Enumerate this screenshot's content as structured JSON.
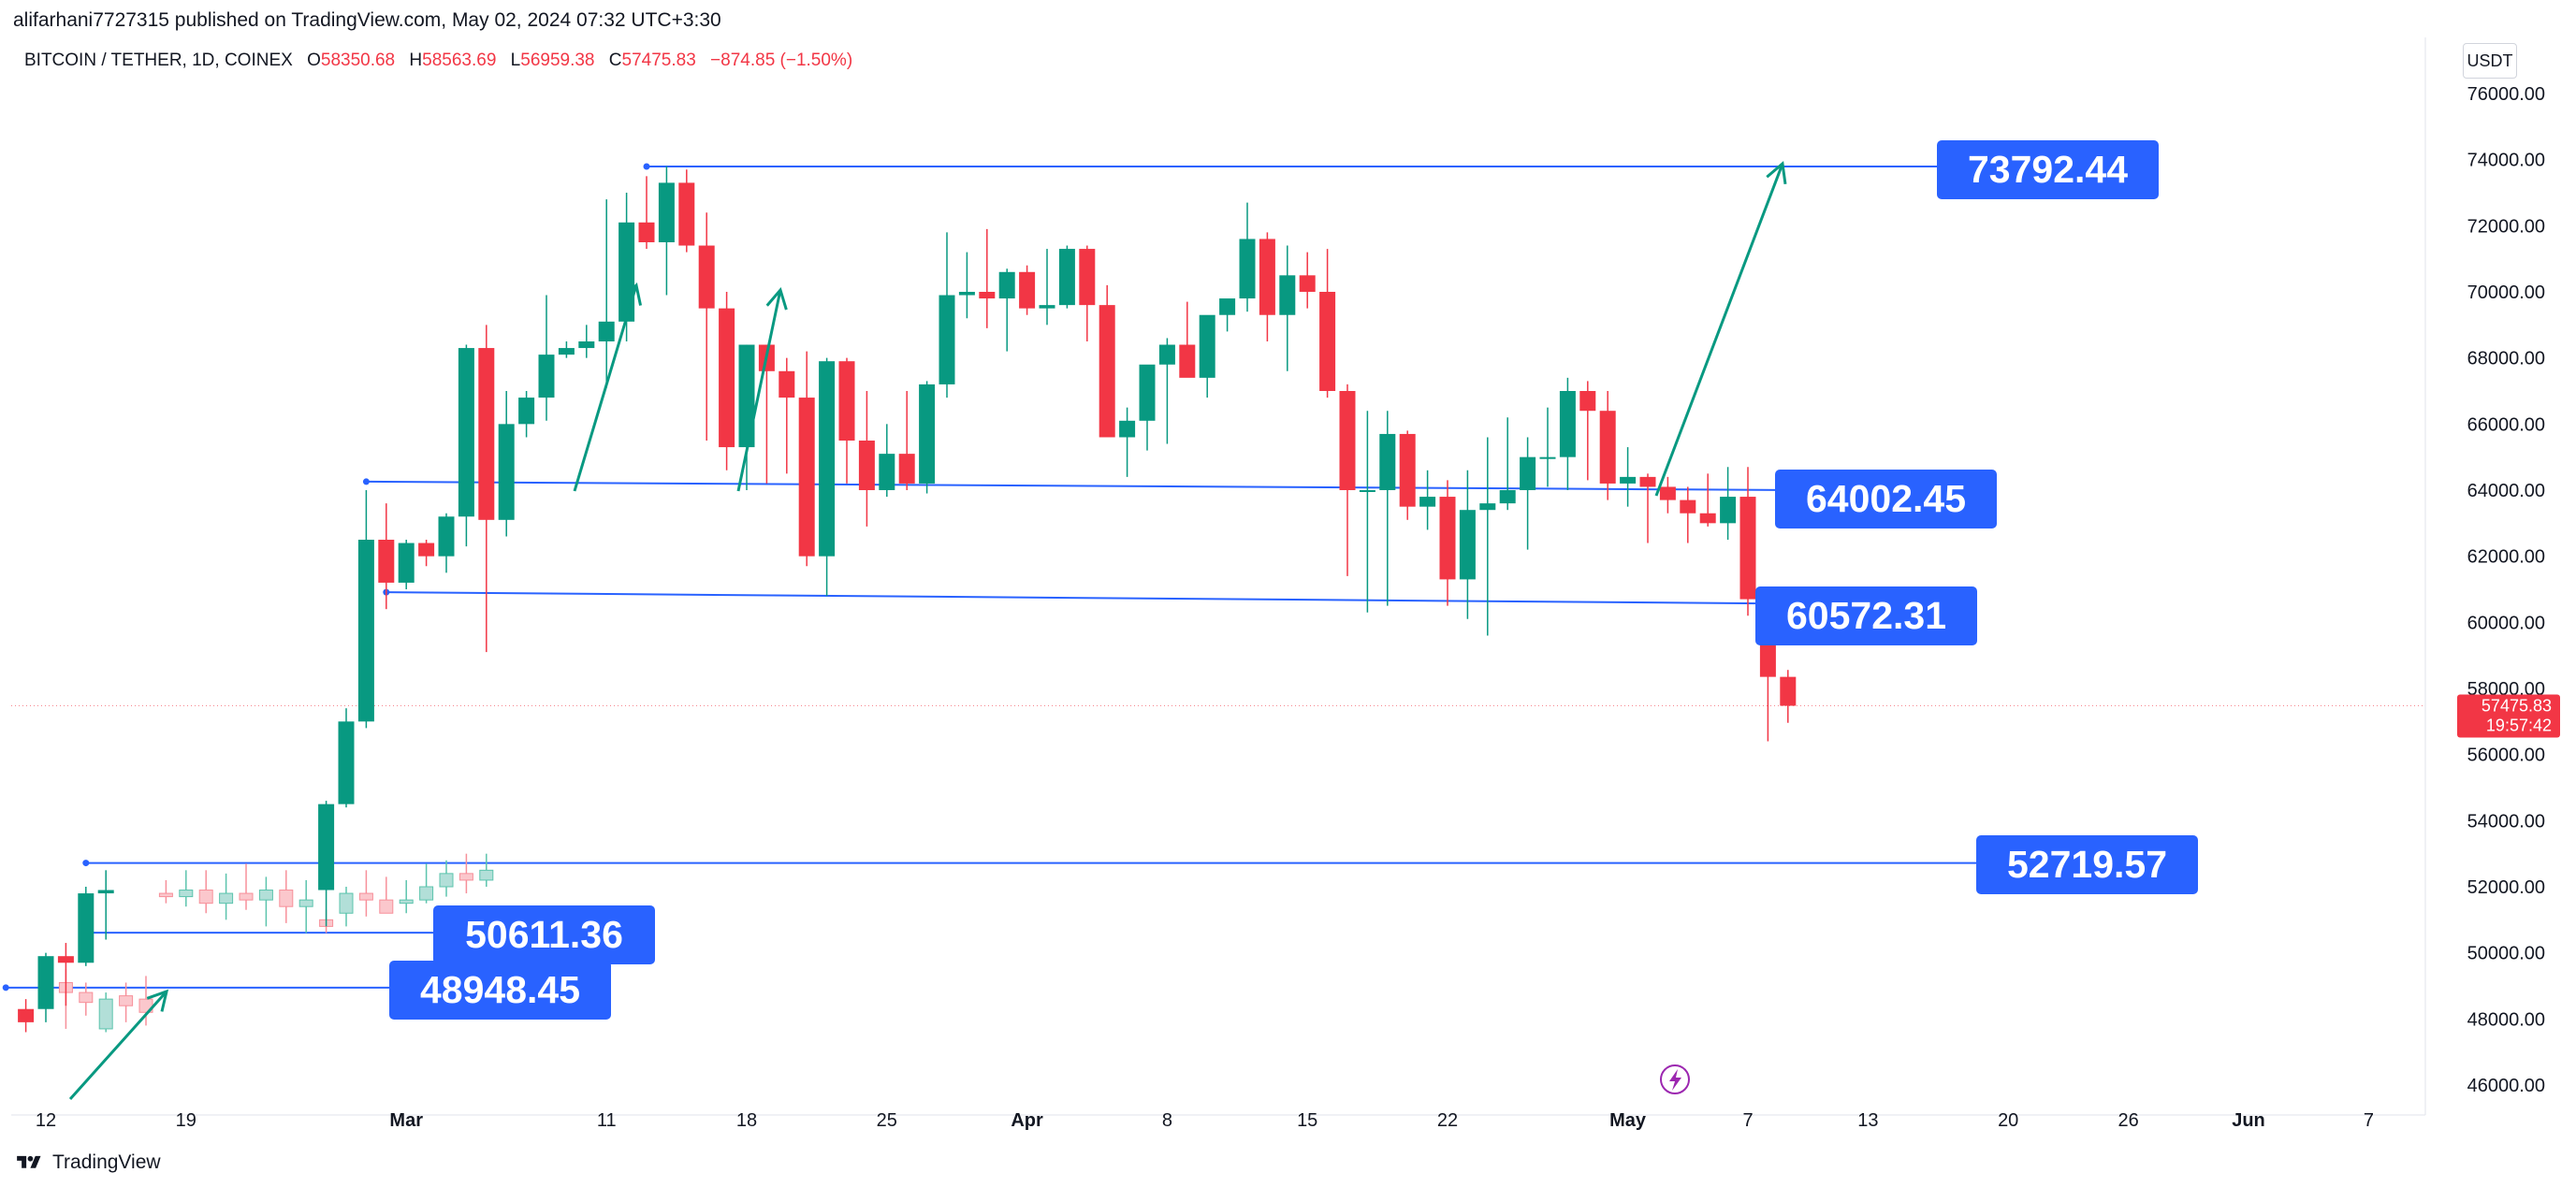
{
  "header": {
    "published": "alifarhani7727315 published on TradingView.com, May 02, 2024 07:32 UTC+3:30",
    "symbol": "BITCOIN / TETHER, 1D, COINEX",
    "ohlc": [
      {
        "k": "O",
        "v": "58350.68"
      },
      {
        "k": "H",
        "v": "58563.69"
      },
      {
        "k": "L",
        "v": "56959.38"
      },
      {
        "k": "C",
        "v": "57475.83"
      }
    ],
    "change": "−874.85 (−1.50%)",
    "currency": "USDT"
  },
  "footer": {
    "brand": "TradingView",
    "logo_icon": "tradingview-logo-icon"
  },
  "colors": {
    "up": "#089981",
    "down": "#f23645",
    "line": "#2962ff",
    "label": "#2962ff",
    "arrow": "#089981"
  },
  "chart_data": {
    "type": "candlestick",
    "title": "BITCOIN / TETHER, 1D, COINEX",
    "xlabel": "",
    "ylabel": "",
    "ylim": [
      45300,
      77000
    ],
    "y_ticks": [
      "76000.00",
      "74000.00",
      "72000.00",
      "70000.00",
      "68000.00",
      "66000.00",
      "64000.00",
      "62000.00",
      "60000.00",
      "58000.00",
      "56000.00",
      "54000.00",
      "52000.00",
      "50000.00",
      "48000.00",
      "46000.00"
    ],
    "x_ticks": [
      "12",
      "19",
      "Mar",
      "11",
      "18",
      "25",
      "Apr",
      "8",
      "15",
      "22",
      "May",
      "7",
      "13",
      "20",
      "26",
      "Jun",
      "7"
    ],
    "x_dates": [
      "2024-02-12",
      "2024-02-19",
      "2024-03-01",
      "2024-03-11",
      "2024-03-18",
      "2024-03-25",
      "2024-04-01",
      "2024-04-08",
      "2024-04-15",
      "2024-04-22",
      "2024-05-01",
      "2024-05-07",
      "2024-05-13",
      "2024-05-20",
      "2024-05-26",
      "2024-06-01",
      "2024-06-07"
    ],
    "last_price": {
      "value": "57475.83",
      "countdown": "19:57:42"
    },
    "candles_main": [
      [
        "2024-02-11",
        48300,
        48600,
        47600,
        47900
      ],
      [
        "2024-02-12",
        48300,
        50000,
        47900,
        49900
      ],
      [
        "2024-02-13",
        49900,
        50300,
        48400,
        49700
      ],
      [
        "2024-02-14",
        49700,
        52000,
        49600,
        51800
      ],
      [
        "2024-02-15",
        51800,
        52500,
        50400,
        51900
      ],
      [
        "2024-02-26",
        51900,
        54600,
        50800,
        54500
      ],
      [
        "2024-02-27",
        54500,
        57400,
        54400,
        57000
      ],
      [
        "2024-02-28",
        57000,
        64000,
        56800,
        62500
      ],
      [
        "2024-02-29",
        62500,
        63600,
        60400,
        61200
      ],
      [
        "2024-03-01",
        61200,
        62500,
        61000,
        62400
      ],
      [
        "2024-03-02",
        62400,
        62500,
        61700,
        62000
      ],
      [
        "2024-03-03",
        62000,
        63300,
        61500,
        63200
      ],
      [
        "2024-03-04",
        63200,
        68400,
        62300,
        68300
      ],
      [
        "2024-03-05",
        68300,
        69000,
        59100,
        63100
      ],
      [
        "2024-03-06",
        63100,
        67000,
        62600,
        66000
      ],
      [
        "2024-03-07",
        66000,
        67000,
        65600,
        66800
      ],
      [
        "2024-03-08",
        66800,
        69900,
        66100,
        68100
      ],
      [
        "2024-03-09",
        68100,
        68500,
        68000,
        68300
      ],
      [
        "2024-03-10",
        68300,
        69000,
        68000,
        68500
      ],
      [
        "2024-03-11",
        68500,
        72800,
        67100,
        69100
      ],
      [
        "2024-03-12",
        69100,
        73000,
        68500,
        72100
      ],
      [
        "2024-03-13",
        72100,
        73500,
        71300,
        71500
      ],
      [
        "2024-03-14",
        71500,
        73800,
        69900,
        73300
      ],
      [
        "2024-03-15",
        73300,
        73700,
        71200,
        71400
      ],
      [
        "2024-03-16",
        71400,
        72400,
        65500,
        69500
      ],
      [
        "2024-03-17",
        69500,
        70000,
        64600,
        65300
      ],
      [
        "2024-03-18",
        65300,
        68400,
        64000,
        68400
      ],
      [
        "2024-03-19",
        68400,
        68400,
        64200,
        67600
      ],
      [
        "2024-03-20",
        67600,
        68000,
        64500,
        66800
      ],
      [
        "2024-03-21",
        66800,
        68200,
        61700,
        62000
      ],
      [
        "2024-03-22",
        62000,
        68000,
        60800,
        67900
      ],
      [
        "2024-03-23",
        67900,
        68000,
        64200,
        65500
      ],
      [
        "2024-03-24",
        65500,
        67000,
        62900,
        64000
      ],
      [
        "2024-03-25",
        64000,
        66000,
        63800,
        65100
      ],
      [
        "2024-03-26",
        65100,
        67000,
        64000,
        64200
      ],
      [
        "2024-03-27",
        64200,
        67300,
        63900,
        67200
      ],
      [
        "2024-03-28",
        67200,
        71800,
        66800,
        69900
      ],
      [
        "2024-03-29",
        69900,
        71200,
        69200,
        70000
      ],
      [
        "2024-03-30",
        70000,
        71900,
        68900,
        69800
      ],
      [
        "2024-03-31",
        69800,
        70700,
        68200,
        70600
      ],
      [
        "2024-04-01",
        70600,
        70800,
        69300,
        69500
      ],
      [
        "2024-04-02",
        69500,
        71300,
        69000,
        69600
      ],
      [
        "2024-04-03",
        69600,
        71400,
        69500,
        71300
      ],
      [
        "2024-04-04",
        71300,
        71400,
        68500,
        69600
      ],
      [
        "2024-04-05",
        69600,
        70200,
        65800,
        65600
      ],
      [
        "2024-04-06",
        65600,
        66500,
        64400,
        66100
      ],
      [
        "2024-04-07",
        66100,
        66900,
        65200,
        67800
      ],
      [
        "2024-04-08",
        67800,
        68600,
        65400,
        68400
      ],
      [
        "2024-04-09",
        68400,
        69700,
        67500,
        67400
      ],
      [
        "2024-04-10",
        67400,
        69000,
        66800,
        69300
      ],
      [
        "2024-04-11",
        69300,
        69400,
        68800,
        69800
      ],
      [
        "2024-04-12",
        69800,
        72700,
        69400,
        71600
      ],
      [
        "2024-04-13",
        71600,
        71800,
        68500,
        69300
      ],
      [
        "2024-04-14",
        69300,
        71400,
        67600,
        70500
      ],
      [
        "2024-04-15",
        70500,
        71200,
        69500,
        70000
      ],
      [
        "2024-04-16",
        70000,
        71300,
        66800,
        67000
      ],
      [
        "2024-04-17",
        67000,
        67200,
        61400,
        64000
      ],
      [
        "2024-04-18",
        64000,
        66400,
        60300,
        64000
      ],
      [
        "2024-04-19",
        64000,
        66400,
        60500,
        65700
      ],
      [
        "2024-04-20",
        65700,
        65800,
        63100,
        63500
      ],
      [
        "2024-04-21",
        63500,
        64600,
        62800,
        63800
      ],
      [
        "2024-04-22",
        63800,
        64300,
        60500,
        61300
      ],
      [
        "2024-04-23",
        61300,
        64600,
        60100,
        63400
      ],
      [
        "2024-04-24",
        63400,
        65600,
        59600,
        63600
      ],
      [
        "2024-04-25",
        63600,
        66200,
        63400,
        64000
      ],
      [
        "2024-04-26",
        64000,
        65600,
        62200,
        65000
      ],
      [
        "2024-04-27",
        65000,
        66500,
        64100,
        65000
      ],
      [
        "2024-04-28",
        65000,
        67400,
        64000,
        67000
      ],
      [
        "2024-04-29",
        67000,
        67300,
        64300,
        66400
      ],
      [
        "2024-04-30",
        66400,
        67000,
        63700,
        64200
      ],
      [
        "2024-05-01",
        64200,
        65300,
        63500,
        64400
      ],
      [
        "2024-05-02",
        64400,
        64500,
        62400,
        64100
      ],
      [
        "2024-05-03",
        64100,
        64400,
        63300,
        63700
      ],
      [
        "2024-05-04",
        63700,
        64100,
        62400,
        63300
      ],
      [
        "2024-05-05",
        63300,
        64500,
        62900,
        63000
      ],
      [
        "2024-05-06",
        63000,
        64700,
        62500,
        63800
      ],
      [
        "2024-05-07",
        63800,
        64700,
        60200,
        60700
      ],
      [
        "2024-05-08",
        60700,
        60800,
        56400,
        58350
      ],
      [
        "2024-05-09",
        58350,
        58560,
        56960,
        57476
      ]
    ],
    "candles_idea": [
      [
        "2024-02-13",
        49100,
        49500,
        47700,
        48800
      ],
      [
        "2024-02-14",
        48800,
        49100,
        48100,
        48500
      ],
      [
        "2024-02-15",
        47700,
        48800,
        47600,
        48600
      ],
      [
        "2024-02-16",
        48700,
        49100,
        47900,
        48400
      ],
      [
        "2024-02-17",
        48600,
        49300,
        47800,
        48200
      ],
      [
        "2024-02-18",
        51800,
        52200,
        51500,
        51700
      ],
      [
        "2024-02-19",
        51700,
        52500,
        51400,
        51900
      ],
      [
        "2024-02-20",
        51900,
        52500,
        51200,
        51500
      ],
      [
        "2024-02-21",
        51500,
        52400,
        51000,
        51800
      ],
      [
        "2024-02-22",
        51800,
        52700,
        51300,
        51600
      ],
      [
        "2024-02-23",
        51600,
        52300,
        50800,
        51900
      ],
      [
        "2024-02-24",
        51900,
        52500,
        50900,
        51400
      ],
      [
        "2024-02-25",
        51400,
        52200,
        50600,
        51600
      ],
      [
        "2024-02-26",
        51000,
        51300,
        50600,
        50800
      ],
      [
        "2024-02-27",
        51200,
        52000,
        50800,
        51800
      ],
      [
        "2024-02-28",
        51800,
        52500,
        51100,
        51600
      ],
      [
        "2024-02-29",
        51600,
        52300,
        51300,
        51200
      ],
      [
        "2024-03-01",
        51500,
        52200,
        51200,
        51600
      ],
      [
        "2024-03-02",
        51600,
        52700,
        51500,
        52000
      ],
      [
        "2024-03-03",
        52000,
        52800,
        51700,
        52400
      ],
      [
        "2024-03-04",
        52400,
        53000,
        51800,
        52200
      ],
      [
        "2024-03-05",
        52200,
        53000,
        52000,
        52500
      ]
    ],
    "levels": [
      {
        "value": 73792.44,
        "label": "73792.44"
      },
      {
        "value": 64002.45,
        "label": "64002.45"
      },
      {
        "value": 60572.31,
        "label": "60572.31"
      },
      {
        "value": 52719.57,
        "label": "52719.57"
      },
      {
        "value": 50611.36,
        "label": "50611.36"
      },
      {
        "value": 48948.45,
        "label": "48948.45"
      }
    ]
  }
}
